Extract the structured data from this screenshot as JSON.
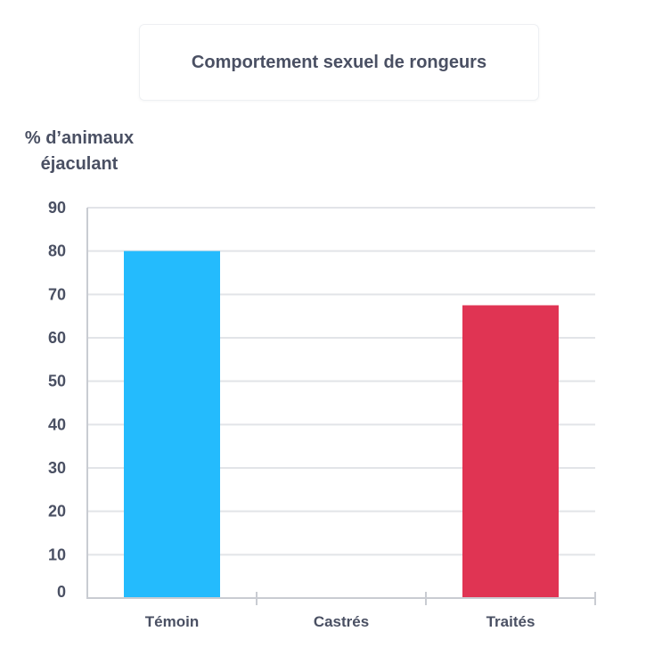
{
  "chart_data": {
    "type": "bar",
    "title": "Comportement sexuel de rongeurs",
    "ylabel_lines": [
      "% d’animaux",
      "éjaculant"
    ],
    "xlabel": "",
    "categories": [
      "Témoin",
      "Castrés",
      "Traités"
    ],
    "values": [
      80,
      0,
      67.5
    ],
    "colors": [
      "#24bbfd",
      "#24bbfd",
      "#e03453"
    ],
    "ylim": [
      0,
      90
    ],
    "yticks": [
      "0",
      "10",
      "20",
      "30",
      "40",
      "50",
      "60",
      "70",
      "80",
      "90"
    ],
    "grid": true,
    "legend": "none"
  }
}
